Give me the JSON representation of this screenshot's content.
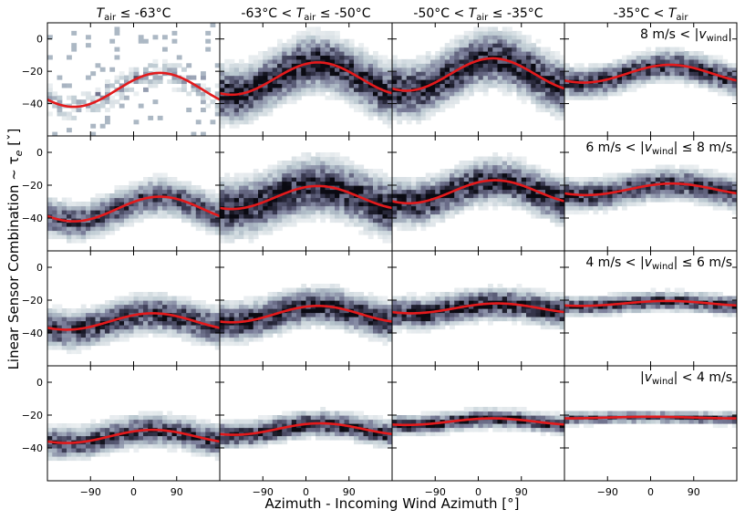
{
  "chart_data": {
    "type": "heatmap",
    "layout": {
      "rows": 4,
      "cols": 4,
      "sharex": true,
      "sharey": true
    },
    "xlabel": "Azimuth - Incoming Wind Azimuth [°]",
    "ylabel": "Linear Sensor Combination  ~ τ",
    "ylabel_sub": "e",
    "ylabel_unit": " [ˇ]",
    "xlim": [
      -180,
      180
    ],
    "ylim": [
      -60,
      10
    ],
    "x_ticks": [
      -90,
      0,
      90
    ],
    "x_tick_labels": [
      "−90",
      "0",
      "90"
    ],
    "y_ticks": [
      0,
      -20,
      -40
    ],
    "y_tick_labels": [
      "0",
      "−20",
      "−40"
    ],
    "heatmap_colormap": [
      "#ffffff",
      "#b9c7cf",
      "#7a7d99",
      "#3a3a52",
      "#0a0a12"
    ],
    "fit_color": "#e31a1c",
    "fit_model": "y = offset + amplitude · cos(x − phase)",
    "column_titles": [
      {
        "pre": "",
        "T": "T",
        "sub": "air",
        "post": " ≤ -63°C"
      },
      {
        "pre": "-63°C < ",
        "T": "T",
        "sub": "air",
        "post": " ≤ -50°C"
      },
      {
        "pre": "-50°C < ",
        "T": "T",
        "sub": "air",
        "post": " ≤ -35°C"
      },
      {
        "pre": "-35°C < ",
        "T": "T",
        "sub": "air",
        "post": ""
      }
    ],
    "row_labels": [
      {
        "pre": "8 m/s < |",
        "v": "v",
        "sub": "wind",
        "post": "|"
      },
      {
        "pre": "6 m/s < |",
        "v": "v",
        "sub": "wind",
        "post": "| ≤ 8 m/s"
      },
      {
        "pre": "4 m/s < |",
        "v": "v",
        "sub": "wind",
        "post": "| ≤ 6 m/s"
      },
      {
        "pre": "|",
        "v": "v",
        "sub": "wind",
        "post": "| < 4 m/s"
      }
    ],
    "panels": [
      [
        {
          "offset": -31.5,
          "amplitude": 10.5,
          "phase": 55,
          "spread": 5,
          "density": 0.35
        },
        {
          "offset": -24.5,
          "amplitude": 10,
          "phase": 25,
          "spread": 9,
          "density": 1
        },
        {
          "offset": -22,
          "amplitude": 10,
          "phase": 30,
          "spread": 9,
          "density": 1
        },
        {
          "offset": -21.5,
          "amplitude": 5.5,
          "phase": 40,
          "spread": 5,
          "density": 0.9
        }
      ],
      [
        {
          "offset": -34.5,
          "amplitude": 7.5,
          "phase": 55,
          "spread": 6,
          "density": 0.8
        },
        {
          "offset": -27.5,
          "amplitude": 7,
          "phase": 25,
          "spread": 9,
          "density": 1
        },
        {
          "offset": -24,
          "amplitude": 7,
          "phase": 35,
          "spread": 7,
          "density": 1
        },
        {
          "offset": -22.5,
          "amplitude": 3.5,
          "phase": 45,
          "spread": 5,
          "density": 0.9
        }
      ],
      [
        {
          "offset": -33,
          "amplitude": 5,
          "phase": 40,
          "spread": 6,
          "density": 0.9
        },
        {
          "offset": -28.5,
          "amplitude": 5,
          "phase": 25,
          "spread": 6,
          "density": 1
        },
        {
          "offset": -25,
          "amplitude": 3,
          "phase": 40,
          "spread": 5,
          "density": 1
        },
        {
          "offset": -22,
          "amplitude": 1.5,
          "phase": 35,
          "spread": 3,
          "density": 0.9
        }
      ],
      [
        {
          "offset": -33,
          "amplitude": 4,
          "phase": 40,
          "spread": 5,
          "density": 0.9
        },
        {
          "offset": -28.5,
          "amplitude": 3.5,
          "phase": 30,
          "spread": 4,
          "density": 1
        },
        {
          "offset": -24,
          "amplitude": 2,
          "phase": 30,
          "spread": 3,
          "density": 1
        },
        {
          "offset": -21.5,
          "amplitude": 0.5,
          "phase": 0,
          "spread": 2,
          "density": 0.8
        }
      ]
    ]
  }
}
